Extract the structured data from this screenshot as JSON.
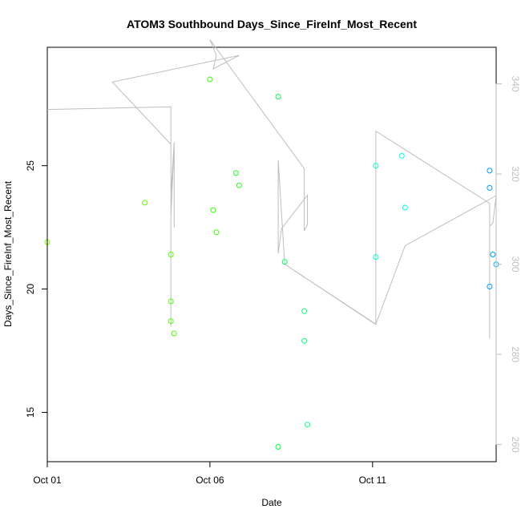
{
  "chart_data": {
    "type": "scatter",
    "title": "ATOM3 Southbound Days_Since_FireInf_Most_Recent",
    "xlabel": "Date",
    "ylabel": "Days_Since_FireInf_Most_Recent",
    "xlim": [
      "2023-10-01",
      "2023-10-14.8"
    ],
    "ylim": [
      13.0,
      29.8
    ],
    "y2lim": [
      256.2,
      348.1
    ],
    "x_ticks": [
      {
        "date": "2023-10-01",
        "label": "Oct 01"
      },
      {
        "date": "2023-10-06",
        "label": "Oct 06"
      },
      {
        "date": "2023-10-11",
        "label": "Oct 11"
      }
    ],
    "y_ticks": [
      15,
      20,
      25
    ],
    "y2_ticks": [
      260,
      280,
      300,
      320,
      340
    ],
    "grid": false,
    "series": [
      {
        "marker": "circle",
        "points": [
          {
            "x": "2023-10-01 00:00",
            "y": 21.9,
            "color": "#80ff00"
          },
          {
            "x": "2023-10-04 00:00",
            "y": 23.5,
            "color": "#66ff00"
          },
          {
            "x": "2023-10-04 19:12",
            "y": 21.4,
            "color": "#4dff00"
          },
          {
            "x": "2023-10-04 19:12",
            "y": 19.5,
            "color": "#4dff00"
          },
          {
            "x": "2023-10-04 19:12",
            "y": 18.7,
            "color": "#4dff00"
          },
          {
            "x": "2023-10-04 21:36",
            "y": 18.2,
            "color": "#4dff00"
          },
          {
            "x": "2023-10-06 00:00",
            "y": 28.5,
            "color": "#33ff00"
          },
          {
            "x": "2023-10-06 02:24",
            "y": 23.2,
            "color": "#33ff00"
          },
          {
            "x": "2023-10-06 04:48",
            "y": 22.3,
            "color": "#33ff00"
          },
          {
            "x": "2023-10-06 19:12",
            "y": 24.7,
            "color": "#1aff1a"
          },
          {
            "x": "2023-10-06 21:36",
            "y": 24.2,
            "color": "#1aff1a"
          },
          {
            "x": "2023-10-08 02:24",
            "y": 27.8,
            "color": "#00ff40"
          },
          {
            "x": "2023-10-08 02:24",
            "y": 13.6,
            "color": "#00ff40"
          },
          {
            "x": "2023-10-08 07:12",
            "y": 21.1,
            "color": "#00ff55"
          },
          {
            "x": "2023-10-08 21:36",
            "y": 19.1,
            "color": "#00ff80"
          },
          {
            "x": "2023-10-08 21:36",
            "y": 17.9,
            "color": "#00ff80"
          },
          {
            "x": "2023-10-09 00:00",
            "y": 14.5,
            "color": "#00ff80"
          },
          {
            "x": "2023-10-11 02:24",
            "y": 25.0,
            "color": "#00ffcc"
          },
          {
            "x": "2023-10-11 02:24",
            "y": 21.3,
            "color": "#00ffcc"
          },
          {
            "x": "2023-10-11 21:36",
            "y": 25.4,
            "color": "#00ffee"
          },
          {
            "x": "2023-10-12 00:00",
            "y": 23.3,
            "color": "#00ffee"
          },
          {
            "x": "2023-10-14 14:24",
            "y": 24.8,
            "color": "#0099ff"
          },
          {
            "x": "2023-10-14 14:24",
            "y": 24.1,
            "color": "#0099ff"
          },
          {
            "x": "2023-10-14 16:48",
            "y": 21.4,
            "color": "#0099ff"
          },
          {
            "x": "2023-10-14 14:24",
            "y": 20.1,
            "color": "#0099ff"
          },
          {
            "x": "2023-10-14 19:12",
            "y": 21.0,
            "color": "#00aaff"
          }
        ]
      },
      {
        "type": "line",
        "axis": "right",
        "color": "#bebebe",
        "points": [
          {
            "x": "2023-10-01 00:00",
            "y": 334.3
          },
          {
            "x": "2023-10-04 19:12",
            "y": 334.9
          },
          {
            "x": "2023-10-04 19:12",
            "y": 315.4
          },
          {
            "x": "2023-10-04 21:36",
            "y": 327.0
          },
          {
            "x": "2023-10-04 21:36",
            "y": 308.1
          },
          {
            "x": "2023-10-04 21:36",
            "y": 326.5
          },
          {
            "x": "2023-10-04 19:12",
            "y": 310.7
          },
          {
            "x": "2023-10-04 19:12",
            "y": 286.1
          },
          {
            "x": "2023-10-04 19:12",
            "y": 326.6
          },
          {
            "x": "2023-10-03 00:00",
            "y": 340.4
          },
          {
            "x": "2023-10-06 21:36",
            "y": 346.3
          },
          {
            "x": "2023-10-06 02:24",
            "y": 343.3
          },
          {
            "x": "2023-10-06 04:48",
            "y": 346.3
          },
          {
            "x": "2023-10-06 00:00",
            "y": 349.8
          },
          {
            "x": "2023-10-08 21:36",
            "y": 321.2
          },
          {
            "x": "2023-10-08 21:36",
            "y": 307.4
          },
          {
            "x": "2023-10-09 00:00",
            "y": 308.8
          },
          {
            "x": "2023-10-09 00:00",
            "y": 315.3
          },
          {
            "x": "2023-10-08 04:48",
            "y": 307.9
          },
          {
            "x": "2023-10-08 02:24",
            "y": 302.4
          },
          {
            "x": "2023-10-08 02:24",
            "y": 323.1
          },
          {
            "x": "2023-10-08 07:12",
            "y": 300.0
          },
          {
            "x": "2023-10-11 02:24",
            "y": 286.6
          },
          {
            "x": "2023-10-11 02:24",
            "y": 329.5
          },
          {
            "x": "2023-10-14 14:24",
            "y": 313.5
          },
          {
            "x": "2023-10-14 14:24",
            "y": 283.5
          },
          {
            "x": "2023-10-14 14:24",
            "y": 308.4
          },
          {
            "x": "2023-10-14 16:48",
            "y": 309.1
          },
          {
            "x": "2023-10-14 19:12",
            "y": 315.2
          },
          {
            "x": "2023-10-12 00:00",
            "y": 304.1
          },
          {
            "x": "2023-10-11 02:24",
            "y": 286.7
          },
          {
            "x": "2023-10-08 07:12",
            "y": 300.0
          }
        ]
      }
    ]
  }
}
